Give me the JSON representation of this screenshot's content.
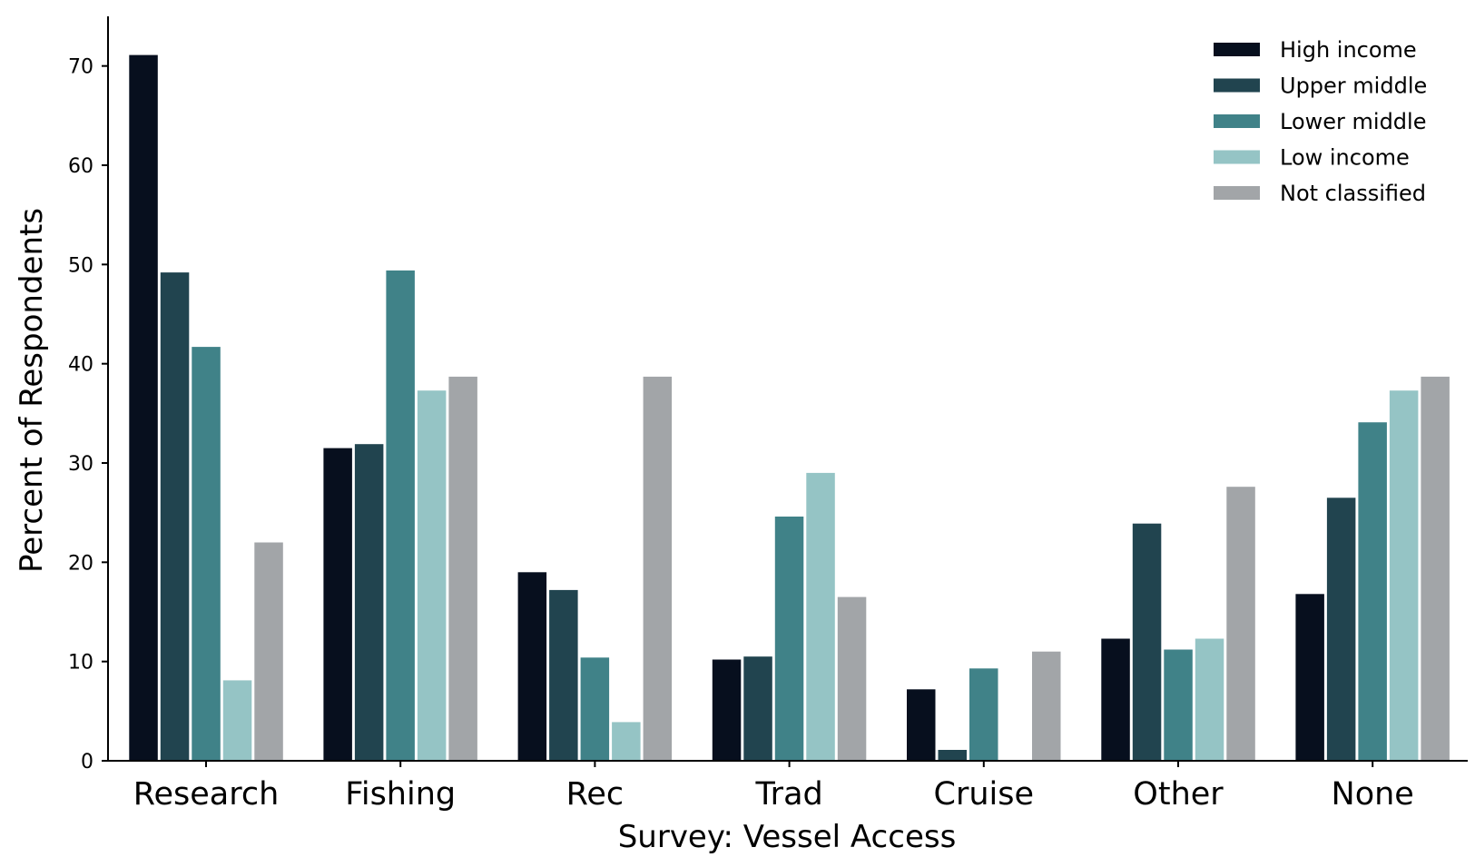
{
  "chart_data": {
    "type": "bar",
    "title": "",
    "xlabel": "Survey: Vessel Access",
    "ylabel": "Percent of Respondents",
    "ylim": [
      0,
      75
    ],
    "yticks": [
      0,
      10,
      20,
      30,
      40,
      50,
      60,
      70
    ],
    "grid": false,
    "legend_position": "top-right",
    "categories": [
      "Research",
      "Fishing",
      "Rec",
      "Trad",
      "Cruise",
      "Other",
      "None"
    ],
    "series": [
      {
        "name": "High income",
        "color": "#070f1e",
        "values": [
          71.1,
          31.5,
          19.0,
          10.2,
          7.2,
          12.3,
          16.8
        ]
      },
      {
        "name": "Upper middle",
        "color": "#21444f",
        "values": [
          49.2,
          31.9,
          17.2,
          10.5,
          1.1,
          23.9,
          26.5
        ]
      },
      {
        "name": "Lower middle",
        "color": "#408288",
        "values": [
          41.7,
          49.4,
          10.4,
          24.6,
          9.3,
          11.2,
          34.1
        ]
      },
      {
        "name": "Low income",
        "color": "#95c4c5",
        "values": [
          8.1,
          37.3,
          3.9,
          29.0,
          0,
          12.3,
          37.3
        ]
      },
      {
        "name": "Not classified",
        "color": "#a2a5a8",
        "values": [
          22.0,
          38.7,
          38.7,
          16.5,
          11.0,
          27.6,
          38.7
        ]
      }
    ]
  }
}
